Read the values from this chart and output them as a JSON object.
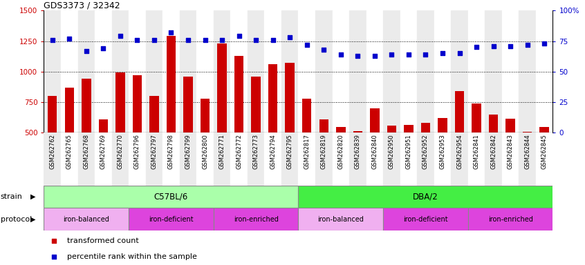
{
  "title": "GDS3373 / 32342",
  "samples": [
    "GSM262762",
    "GSM262765",
    "GSM262768",
    "GSM262769",
    "GSM262770",
    "GSM262796",
    "GSM262797",
    "GSM262798",
    "GSM262799",
    "GSM262800",
    "GSM262771",
    "GSM262772",
    "GSM262773",
    "GSM262794",
    "GSM262795",
    "GSM262817",
    "GSM262819",
    "GSM262820",
    "GSM262839",
    "GSM262840",
    "GSM262950",
    "GSM262951",
    "GSM262952",
    "GSM262953",
    "GSM262954",
    "GSM262841",
    "GSM262842",
    "GSM262843",
    "GSM262844",
    "GSM262845"
  ],
  "bar_values": [
    800,
    870,
    940,
    610,
    990,
    970,
    800,
    1290,
    960,
    780,
    1230,
    1130,
    960,
    1060,
    1070,
    780,
    610,
    545,
    510,
    700,
    555,
    565,
    580,
    620,
    840,
    740,
    650,
    615,
    505,
    545
  ],
  "percentile_values": [
    76,
    77,
    67,
    69,
    79,
    76,
    76,
    82,
    76,
    76,
    76,
    79,
    76,
    76,
    78,
    72,
    68,
    64,
    63,
    63,
    64,
    64,
    64,
    65,
    65,
    70,
    71,
    71,
    72,
    73
  ],
  "bar_color": "#cc0000",
  "dot_color": "#0000cc",
  "ylim_left": [
    500,
    1500
  ],
  "ylim_right": [
    0,
    100
  ],
  "yticks_left": [
    500,
    750,
    1000,
    1250,
    1500
  ],
  "yticks_right": [
    0,
    25,
    50,
    75,
    100
  ],
  "ytick_labels_right": [
    "0",
    "25",
    "50",
    "75",
    "100%"
  ],
  "strain_groups": [
    {
      "label": "C57BL/6",
      "start": 0,
      "end": 15,
      "color": "#aaffaa"
    },
    {
      "label": "DBA/2",
      "start": 15,
      "end": 30,
      "color": "#44ee44"
    }
  ],
  "protocol_groups": [
    {
      "label": "iron-balanced",
      "start": 0,
      "end": 5,
      "color": "#f0b0f0"
    },
    {
      "label": "iron-deficient",
      "start": 5,
      "end": 10,
      "color": "#dd44dd"
    },
    {
      "label": "iron-enriched",
      "start": 10,
      "end": 15,
      "color": "#dd44dd"
    },
    {
      "label": "iron-balanced",
      "start": 15,
      "end": 20,
      "color": "#f0b0f0"
    },
    {
      "label": "iron-deficient",
      "start": 20,
      "end": 25,
      "color": "#dd44dd"
    },
    {
      "label": "iron-enriched",
      "start": 25,
      "end": 30,
      "color": "#dd44dd"
    }
  ],
  "legend_items": [
    {
      "label": "transformed count",
      "color": "#cc0000"
    },
    {
      "label": "percentile rank within the sample",
      "color": "#0000cc"
    }
  ],
  "bg_color": "#ffffff",
  "bar_bg_even": "#ebebeb",
  "bar_bg_odd": "#ffffff"
}
